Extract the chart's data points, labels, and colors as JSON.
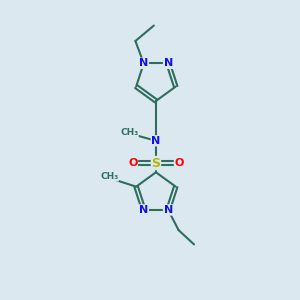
{
  "background_color": "#dce8f0",
  "bond_color": "#2d6e5e",
  "n_color": "#1010e8",
  "s_color": "#b8b800",
  "o_color": "#ff0000",
  "line_width": 1.5,
  "font_size": 8.0,
  "figsize": [
    3.0,
    3.0
  ],
  "dpi": 100,
  "xlim": [
    0,
    10
  ],
  "ylim": [
    0,
    10
  ]
}
